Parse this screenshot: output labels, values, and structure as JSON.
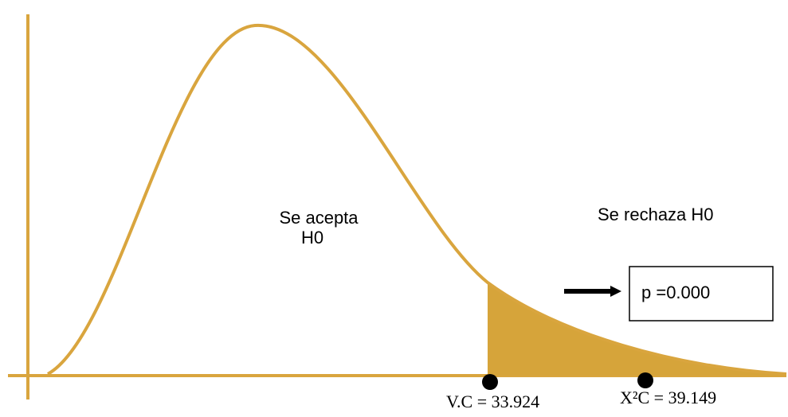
{
  "accept_region": {
    "line1": "Se acepta",
    "line2": "H0"
  },
  "reject_region": {
    "label": "Se rechaza H0"
  },
  "p_value_box": {
    "label": "p =0.000"
  },
  "critical_value": {
    "label": "V.C = 33.924"
  },
  "test_statistic": {
    "label": "X²C = 39.149"
  }
}
